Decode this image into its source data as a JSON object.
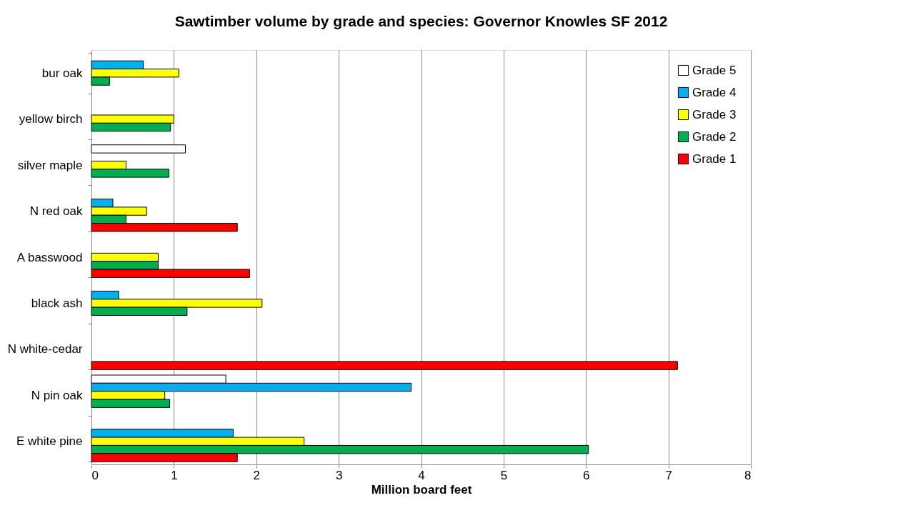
{
  "chart_data": {
    "type": "bar",
    "orientation": "horizontal",
    "title": "Sawtimber volume by grade and species:    Governor Knowles SF 2012",
    "xlabel": "Million board feet",
    "categories": [
      "bur oak",
      "yellow birch",
      "silver maple",
      "N red oak",
      "A basswood",
      "black ash",
      "N white-cedar",
      "N pin oak",
      "E white pine"
    ],
    "series": [
      {
        "name": "Grade 5",
        "color": "#ffffff",
        "values": [
          null,
          null,
          1.14,
          null,
          null,
          null,
          null,
          1.63,
          null
        ]
      },
      {
        "name": "Grade 4",
        "color": "#00b0f0",
        "values": [
          0.63,
          null,
          null,
          0.26,
          null,
          0.33,
          null,
          3.88,
          1.72
        ]
      },
      {
        "name": "Grade 3",
        "color": "#ffff00",
        "values": [
          1.06,
          1.0,
          0.42,
          0.67,
          0.81,
          2.07,
          null,
          0.89,
          2.58
        ]
      },
      {
        "name": "Grade 2",
        "color": "#00b050",
        "values": [
          0.22,
          0.96,
          0.94,
          0.42,
          0.81,
          1.16,
          null,
          0.95,
          6.03
        ]
      },
      {
        "name": "Grade 1",
        "color": "#ff0000",
        "values": [
          null,
          null,
          null,
          1.77,
          1.92,
          null,
          7.11,
          null,
          1.77
        ]
      }
    ],
    "xlim": [
      0,
      8
    ],
    "xticks": [
      0,
      1,
      2,
      3,
      4,
      5,
      6,
      7,
      8
    ],
    "grid": "x",
    "legend": "top right"
  }
}
